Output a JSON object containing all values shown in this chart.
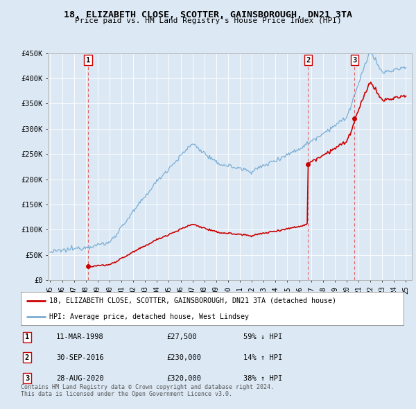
{
  "title": "18, ELIZABETH CLOSE, SCOTTER, GAINSBOROUGH, DN21 3TA",
  "subtitle": "Price paid vs. HM Land Registry's House Price Index (HPI)",
  "background_color": "#dce9f5",
  "plot_bg_color": "#dce9f5",
  "red_line_color": "#cc0000",
  "blue_line_color": "#7aadd4",
  "grid_color": "#ffffff",
  "transactions": [
    {
      "label": "1",
      "date_str": "11-MAR-1998",
      "date_num": 1998.19,
      "price": 27500
    },
    {
      "label": "2",
      "date_str": "30-SEP-2016",
      "date_num": 2016.75,
      "price": 230000
    },
    {
      "label": "3",
      "date_str": "28-AUG-2020",
      "date_num": 2020.66,
      "price": 320000
    }
  ],
  "transaction_notes": [
    {
      "label": "1",
      "date": "11-MAR-1998",
      "price": "£27,500",
      "note": "59% ↓ HPI"
    },
    {
      "label": "2",
      "date": "30-SEP-2016",
      "price": "£230,000",
      "note": "14% ↑ HPI"
    },
    {
      "label": "3",
      "date": "28-AUG-2020",
      "price": "£320,000",
      "note": "38% ↑ HPI"
    }
  ],
  "ylim": [
    0,
    450000
  ],
  "yticks": [
    0,
    50000,
    100000,
    150000,
    200000,
    250000,
    300000,
    350000,
    400000,
    450000
  ],
  "ytick_labels": [
    "£0",
    "£50K",
    "£100K",
    "£150K",
    "£200K",
    "£250K",
    "£300K",
    "£350K",
    "£400K",
    "£450K"
  ],
  "xlim_start": 1994.8,
  "xlim_end": 2025.5,
  "xtick_years": [
    1995,
    1996,
    1997,
    1998,
    1999,
    2000,
    2001,
    2002,
    2003,
    2004,
    2005,
    2006,
    2007,
    2008,
    2009,
    2010,
    2011,
    2012,
    2013,
    2014,
    2015,
    2016,
    2017,
    2018,
    2019,
    2020,
    2021,
    2022,
    2023,
    2024,
    2025
  ],
  "legend_red_label": "18, ELIZABETH CLOSE, SCOTTER, GAINSBOROUGH, DN21 3TA (detached house)",
  "legend_blue_label": "HPI: Average price, detached house, West Lindsey",
  "footer": "Contains HM Land Registry data © Crown copyright and database right 2024.\nThis data is licensed under the Open Government Licence v3.0.",
  "font_family": "DejaVu Sans Mono"
}
